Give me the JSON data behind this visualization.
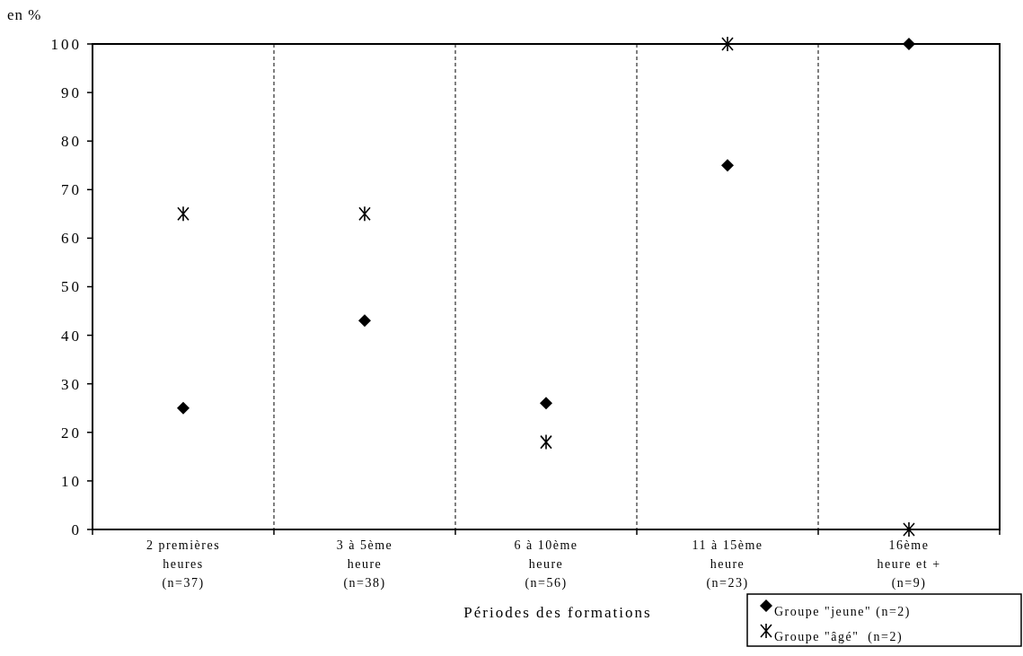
{
  "chart_data": {
    "type": "scatter",
    "ylabel": "en %",
    "xlabel": "Périodes des formations",
    "categories": [
      "2 premières\nheures\n(n=37)",
      "3 à 5ème\nheure\n(n=38)",
      "6 à 10ème\nheure\n(n=56)",
      "11 à 15ème\nheure\n(n=23)",
      "16ème\nheure et +\n(n=9)"
    ],
    "series": [
      {
        "name": "Groupe \"jeune\" (n=2)",
        "color": "#000000",
        "marker": "diamond",
        "values": [
          25,
          43,
          26,
          75,
          100
        ]
      },
      {
        "name": "Groupe \"âgé\"  (n=2)",
        "color": "#000000",
        "marker": "cross",
        "values": [
          65,
          65,
          18,
          100,
          0
        ]
      }
    ],
    "ylim": [
      0,
      100
    ],
    "yticks": [
      0,
      10,
      20,
      30,
      40,
      50,
      60,
      70,
      80,
      90,
      100
    ],
    "grid": "x",
    "legend": "bottom right"
  }
}
